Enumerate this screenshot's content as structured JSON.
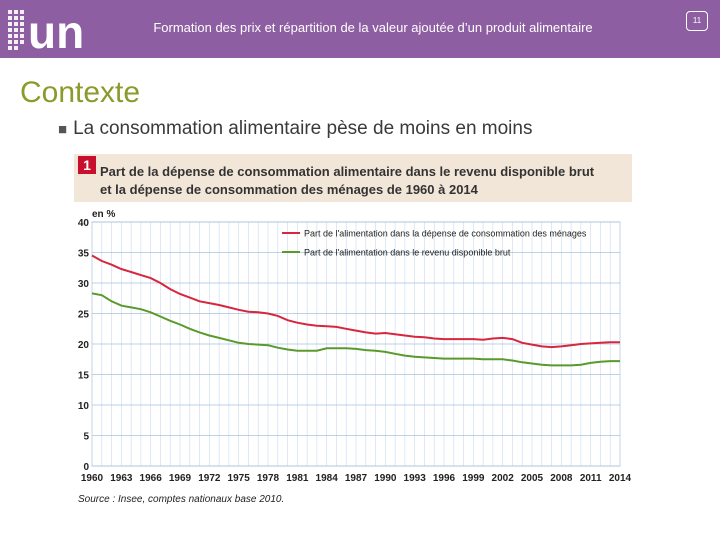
{
  "header": {
    "title": "Formation des prix et répartition de la valeur ajoutée d’un produit alimentaire",
    "page_number": "11",
    "logo_text": "un"
  },
  "slide": {
    "title": "Contexte",
    "bullet": "La consommation alimentaire pèse de moins en moins"
  },
  "chart_data": {
    "type": "line",
    "number": "1",
    "title_line1": "Part de la dépense de consommation alimentaire dans le revenu disponible brut",
    "title_line2": "et la dépense de consommation des ménages de 1960 à 2014",
    "ylabel": "en %",
    "xlabel": "",
    "ylim": [
      0,
      40
    ],
    "xlim": [
      1960,
      2014
    ],
    "yticks": [
      0,
      5,
      10,
      15,
      20,
      25,
      30,
      35,
      40
    ],
    "xticks": [
      1960,
      1963,
      1966,
      1969,
      1972,
      1975,
      1978,
      1981,
      1984,
      1987,
      1990,
      1993,
      1996,
      1999,
      2002,
      2005,
      2008,
      2011,
      2014
    ],
    "grid": true,
    "legend_position": "top-right",
    "source": "Source : Insee, comptes nationaux base 2010.",
    "x": [
      1960,
      1961,
      1962,
      1963,
      1964,
      1965,
      1966,
      1967,
      1968,
      1969,
      1970,
      1971,
      1972,
      1973,
      1974,
      1975,
      1976,
      1977,
      1978,
      1979,
      1980,
      1981,
      1982,
      1983,
      1984,
      1985,
      1986,
      1987,
      1988,
      1989,
      1990,
      1991,
      1992,
      1993,
      1994,
      1995,
      1996,
      1997,
      1998,
      1999,
      2000,
      2001,
      2002,
      2003,
      2004,
      2005,
      2006,
      2007,
      2008,
      2009,
      2010,
      2011,
      2012,
      2013,
      2014
    ],
    "series": [
      {
        "name": "Part de l'alimentation dans la dépense de consommation des ménages",
        "color": "#d7263d",
        "values": [
          34.5,
          33.6,
          33.0,
          32.3,
          31.8,
          31.3,
          30.8,
          30.0,
          29.0,
          28.2,
          27.6,
          27.0,
          26.7,
          26.4,
          26.0,
          25.6,
          25.3,
          25.2,
          25.0,
          24.6,
          23.9,
          23.5,
          23.2,
          23.0,
          22.9,
          22.8,
          22.5,
          22.2,
          21.9,
          21.7,
          21.8,
          21.6,
          21.4,
          21.2,
          21.1,
          20.9,
          20.8,
          20.8,
          20.8,
          20.8,
          20.7,
          20.9,
          21.0,
          20.8,
          20.2,
          19.9,
          19.6,
          19.5,
          19.6,
          19.8,
          20.0,
          20.1,
          20.2,
          20.3,
          20.3
        ]
      },
      {
        "name": "Part de l'alimentation dans le revenu disponible brut",
        "color": "#5a9a2b",
        "values": [
          28.3,
          28.0,
          27.0,
          26.3,
          26.0,
          25.7,
          25.2,
          24.5,
          23.8,
          23.2,
          22.5,
          21.9,
          21.4,
          21.0,
          20.6,
          20.2,
          20.0,
          19.9,
          19.8,
          19.4,
          19.1,
          18.9,
          18.9,
          18.9,
          19.3,
          19.3,
          19.3,
          19.2,
          19.0,
          18.9,
          18.7,
          18.4,
          18.1,
          17.9,
          17.8,
          17.7,
          17.6,
          17.6,
          17.6,
          17.6,
          17.5,
          17.5,
          17.5,
          17.3,
          17.0,
          16.8,
          16.6,
          16.5,
          16.5,
          16.5,
          16.6,
          16.9,
          17.1,
          17.2,
          17.2
        ]
      }
    ]
  }
}
